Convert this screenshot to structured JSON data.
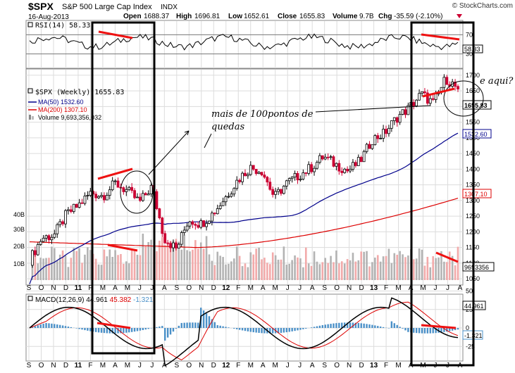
{
  "header": {
    "symbol": "$SPX",
    "name": "S&P 500 Large Cap Index",
    "exchange": "INDX",
    "date": "16-Aug-2013",
    "open_label": "Open",
    "open": "1688.37",
    "high_label": "High",
    "high": "1696.81",
    "low_label": "Low",
    "low": "1652.61",
    "close_label": "Close",
    "close": "1655.83",
    "volume_label": "Volume",
    "volume": "9.7B",
    "chg_label": "Chg",
    "chg": "-35.59 (-2.10%)",
    "watermark": "© StockCharts.com"
  },
  "colors": {
    "up": "#000000",
    "down": "#cc0033",
    "ma50": "#00008b",
    "ma200": "#dd0000",
    "vol_up": "#b3b3b3",
    "vol_down": "#f2aaaa",
    "macd_line": "#000000",
    "signal_line": "#dd0000",
    "histogram": "#4a90c8",
    "rsi_line": "#000000",
    "rsi_fill": "#2e8b57",
    "annotation": "#ee1111",
    "box": "#000000"
  },
  "rsi_panel": {
    "legend": "RSI(14) 58.33",
    "last_value": "58.33",
    "ticks": [
      "70",
      "30"
    ],
    "overbought": 70,
    "oversold": 30
  },
  "price_panel": {
    "legend_main": "$SPX (Weekly) 1655.83",
    "legend_ma50": "MA(50) 1532.60",
    "legend_ma200": "MA(200) 1307.10",
    "legend_volume": "Volume 9,693,356,032",
    "ticks": [
      "1700",
      "1650",
      "1600",
      "1550",
      "1500",
      "1450",
      "1400",
      "1350",
      "1300",
      "1250",
      "1200",
      "1150",
      "1100",
      "1050"
    ],
    "tags": {
      "close": "1655.83",
      "ma50": "1532.60",
      "ma200": "1307.10",
      "volume": "9693356"
    },
    "volume_ticks": [
      "40B",
      "30B",
      "20B",
      "10B"
    ]
  },
  "macd_panel": {
    "legend_prefix": "MACD(12,26,9)",
    "legend_v1": "44.961",
    "legend_v2": "45.382",
    "legend_v3": "-1.321",
    "tags": {
      "macd": "44.961",
      "hist": "-1.321"
    },
    "ticks": [
      "50",
      "25",
      "0",
      "-25"
    ]
  },
  "x_axis": {
    "labels": [
      "S",
      "O",
      "N",
      "D",
      "11",
      "F",
      "M",
      "A",
      "M",
      "J",
      "J",
      "A",
      "S",
      "O",
      "N",
      "D",
      "12",
      "F",
      "M",
      "A",
      "M",
      "J",
      "J",
      "A",
      "S",
      "O",
      "N",
      "D",
      "13",
      "F",
      "M",
      "A",
      "M",
      "J",
      "J",
      "A"
    ]
  },
  "annotations": {
    "note_points": "mais de 100pontos de",
    "note_points_2": "quedas",
    "question": "e aqui?"
  },
  "chart_data": {
    "type": "candlestick",
    "title": "$SPX S&P 500 Large Cap Index INDX",
    "interval": "Weekly",
    "x_range": [
      "2010-09",
      "2013-08"
    ],
    "ylim": [
      1030,
      1720
    ],
    "series_close": {
      "name": "$SPX (Weekly)",
      "dates": [
        "2010-09",
        "2010-10",
        "2010-11",
        "2010-12",
        "2011-01",
        "2011-02",
        "2011-03",
        "2011-04",
        "2011-05",
        "2011-06",
        "2011-07",
        "2011-08",
        "2011-09",
        "2011-10",
        "2011-11",
        "2011-12",
        "2012-01",
        "2012-02",
        "2012-03",
        "2012-04",
        "2012-05",
        "2012-06",
        "2012-07",
        "2012-08",
        "2012-09",
        "2012-10",
        "2012-11",
        "2012-12",
        "2013-01",
        "2013-02",
        "2013-03",
        "2013-04",
        "2013-05",
        "2013-06",
        "2013-07",
        "2013-08"
      ],
      "values": [
        1110,
        1180,
        1190,
        1255,
        1285,
        1325,
        1315,
        1355,
        1330,
        1295,
        1345,
        1180,
        1145,
        1240,
        1225,
        1260,
        1310,
        1365,
        1405,
        1395,
        1310,
        1355,
        1380,
        1405,
        1440,
        1415,
        1395,
        1425,
        1495,
        1515,
        1565,
        1595,
        1640,
        1610,
        1690,
        1656
      ]
    },
    "ma50": {
      "name": "MA(50)",
      "last": 1532.6
    },
    "ma200": {
      "name": "MA(200)",
      "last": 1307.1
    },
    "volume": {
      "name": "Volume",
      "last": 9693356032
    },
    "rsi": {
      "name": "RSI(14)",
      "last": 58.33
    },
    "macd": {
      "name": "MACD(12,26,9)",
      "macd": 44.961,
      "signal": 45.382,
      "histogram": -1.321
    }
  }
}
